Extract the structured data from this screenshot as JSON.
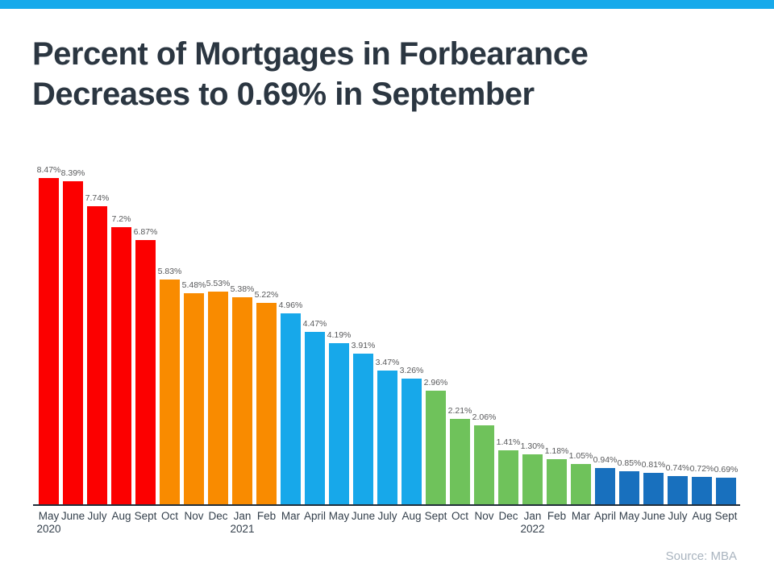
{
  "page": {
    "title_line1": "Percent of Mortgages in Forbearance",
    "title_line2": "Decreases to 0.69% in September",
    "source": "Source: MBA",
    "accent_color": "#17AAEB",
    "title_color": "#2B3641"
  },
  "chart_data": {
    "type": "bar",
    "title": "Percent of Mortgages in Forbearance Decreases to 0.69% in September",
    "xlabel": "",
    "ylabel": "",
    "ylim": [
      0,
      9.1
    ],
    "grid": false,
    "legend": "none",
    "categories": [
      "May",
      "June",
      "July",
      "Aug",
      "Sept",
      "Oct",
      "Nov",
      "Dec",
      "Jan",
      "Feb",
      "Mar",
      "April",
      "May",
      "June",
      "July",
      "Aug",
      "Sept",
      "Oct",
      "Nov",
      "Dec",
      "Jan",
      "Feb",
      "Mar",
      "April",
      "May",
      "June",
      "July",
      "Aug",
      "Sept"
    ],
    "values": [
      8.47,
      8.39,
      7.74,
      7.2,
      6.87,
      5.83,
      5.48,
      5.53,
      5.38,
      5.22,
      4.96,
      4.47,
      4.19,
      3.91,
      3.47,
      3.26,
      2.96,
      2.21,
      2.06,
      1.41,
      1.3,
      1.18,
      1.05,
      0.94,
      0.85,
      0.81,
      0.74,
      0.72,
      0.69
    ],
    "value_labels": [
      "8.47%",
      "8.39%",
      "7.74%",
      "7.2%",
      "6.87%",
      "5.83%",
      "5.48%",
      "5.53%",
      "5.38%",
      "5.22%",
      "4.96%",
      "4.47%",
      "4.19%",
      "3.91%",
      "3.47%",
      "3.26%",
      "2.96%",
      "2.21%",
      "2.06%",
      "1.41%",
      "1.30%",
      "1.18%",
      "1.05%",
      "0.94%",
      "0.85%",
      "0.81%",
      "0.74%",
      "0.72%",
      "0.69%"
    ],
    "year_labels": [
      {
        "index": 0,
        "year": "2020"
      },
      {
        "index": 8,
        "year": "2021"
      },
      {
        "index": 20,
        "year": "2022"
      }
    ],
    "bar_color_groups": [
      {
        "from": 0,
        "to": 4,
        "name": "red",
        "color": "#FC0000"
      },
      {
        "from": 5,
        "to": 9,
        "name": "orange",
        "color": "#F98B00"
      },
      {
        "from": 10,
        "to": 15,
        "name": "light-blue",
        "color": "#17A8EA"
      },
      {
        "from": 16,
        "to": 22,
        "name": "green",
        "color": "#6FC25B"
      },
      {
        "from": 23,
        "to": 28,
        "name": "dark-blue",
        "color": "#1870BE"
      }
    ]
  }
}
